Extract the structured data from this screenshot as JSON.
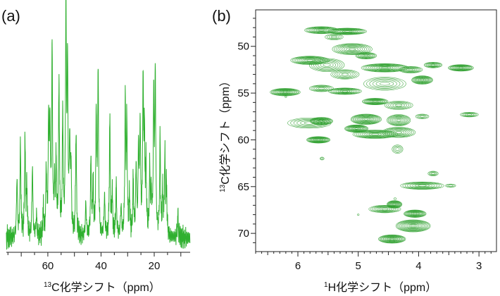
{
  "colors": {
    "spectrum": "#2fb02f",
    "contour": "#2a9e2a",
    "axis": "#222222"
  },
  "chart_data": [
    {
      "panel_label": "(a)",
      "type": "line",
      "xlabel_sup": "13",
      "xlabel": "C化学シフト（ppm）",
      "xlim": [
        75.6,
        6.5
      ],
      "x_reversed": true,
      "x_ticks": [
        60,
        40,
        20
      ],
      "x_minor_step": 5,
      "y_axis_shown": false,
      "grid": false,
      "peaks_ppm_intensity": [
        [
          71.6,
          0.27
        ],
        [
          70.3,
          0.42
        ],
        [
          68.6,
          0.43
        ],
        [
          67.9,
          0.23
        ],
        [
          65.8,
          0.32
        ],
        [
          64.3,
          0.1
        ],
        [
          61.7,
          0.12
        ],
        [
          60.6,
          0.29
        ],
        [
          59.7,
          0.5
        ],
        [
          59.2,
          0.46
        ],
        [
          58.4,
          0.82
        ],
        [
          57.5,
          0.2
        ],
        [
          56.9,
          0.32
        ],
        [
          55.8,
          0.69
        ],
        [
          54.4,
          0.53
        ],
        [
          53.2,
          1.0
        ],
        [
          52.6,
          0.72
        ],
        [
          51.8,
          0.4
        ],
        [
          51.3,
          0.3
        ],
        [
          49.4,
          0.47
        ],
        [
          45.7,
          0.15
        ],
        [
          43.8,
          0.34
        ],
        [
          43.0,
          0.24
        ],
        [
          41.8,
          0.55
        ],
        [
          41.1,
          0.73
        ],
        [
          38.7,
          0.18
        ],
        [
          36.7,
          0.52
        ],
        [
          35.8,
          0.19
        ],
        [
          34.3,
          0.23
        ],
        [
          32.5,
          0.14
        ],
        [
          30.9,
          0.58
        ],
        [
          30.3,
          0.5
        ],
        [
          29.3,
          0.17
        ],
        [
          27.9,
          0.25
        ],
        [
          26.8,
          0.31
        ],
        [
          25.9,
          0.38
        ],
        [
          25.3,
          0.49
        ],
        [
          24.2,
          0.67
        ],
        [
          23.7,
          0.42
        ],
        [
          23.1,
          0.3
        ],
        [
          21.7,
          0.28
        ],
        [
          21.1,
          0.17
        ],
        [
          20.2,
          0.6
        ],
        [
          19.6,
          0.72
        ],
        [
          17.8,
          0.43
        ],
        [
          16.8,
          0.19
        ],
        [
          16.0,
          0.35
        ],
        [
          15.4,
          0.22
        ],
        [
          11.1,
          0.1
        ]
      ]
    },
    {
      "panel_label": "(b)",
      "type": "contour",
      "xlabel_sup": "1",
      "xlabel": "H化学シフト（ppm）",
      "ylabel_sup": "13",
      "ylabel": "C化学シフト（ppm）",
      "xlim": [
        6.7,
        2.71
      ],
      "ylim": [
        46.1,
        71.95
      ],
      "x_reversed": true,
      "y_reversed": true,
      "x_ticks": [
        6,
        5,
        4,
        3
      ],
      "y_ticks": [
        50,
        55,
        60,
        65,
        70
      ],
      "x_minor_step": 0.1,
      "y_minor_step": 1,
      "cross_peaks": [
        {
          "h": 5.61,
          "c": 48.27,
          "wh": 0.56,
          "wc": 0.75,
          "levels": 9
        },
        {
          "h": 5.18,
          "c": 48.4,
          "wh": 0.64,
          "wc": 0.7,
          "levels": 11
        },
        {
          "h": 5.4,
          "c": 49.0,
          "wh": 0.3,
          "wc": 0.6,
          "levels": 4
        },
        {
          "h": 5.1,
          "c": 50.3,
          "wh": 0.66,
          "wc": 1.2,
          "levels": 9
        },
        {
          "h": 4.87,
          "c": 51.0,
          "wh": 0.35,
          "wc": 0.7,
          "levels": 8
        },
        {
          "h": 5.8,
          "c": 51.5,
          "wh": 0.64,
          "wc": 0.9,
          "levels": 10
        },
        {
          "h": 5.52,
          "c": 52.0,
          "wh": 0.58,
          "wc": 1.4,
          "levels": 7
        },
        {
          "h": 5.22,
          "c": 53.0,
          "wh": 0.47,
          "wc": 1.0,
          "levels": 6
        },
        {
          "h": 4.56,
          "c": 52.3,
          "wh": 0.78,
          "wc": 0.9,
          "levels": 11
        },
        {
          "h": 4.13,
          "c": 52.5,
          "wh": 0.39,
          "wc": 0.7,
          "levels": 7
        },
        {
          "h": 3.76,
          "c": 52.0,
          "wh": 0.3,
          "wc": 0.6,
          "levels": 7
        },
        {
          "h": 3.3,
          "c": 52.3,
          "wh": 0.42,
          "wc": 0.7,
          "levels": 11
        },
        {
          "h": 3.94,
          "c": 53.6,
          "wh": 0.35,
          "wc": 0.9,
          "levels": 11
        },
        {
          "h": 4.56,
          "c": 54.0,
          "wh": 0.7,
          "wc": 1.4,
          "levels": 6
        },
        {
          "h": 6.21,
          "c": 54.9,
          "wh": 0.5,
          "wc": 0.8,
          "levels": 12
        },
        {
          "h": 5.61,
          "c": 54.5,
          "wh": 0.4,
          "wc": 0.7,
          "levels": 6
        },
        {
          "h": 5.22,
          "c": 54.8,
          "wh": 0.55,
          "wc": 0.7,
          "levels": 9
        },
        {
          "h": 4.72,
          "c": 55.9,
          "wh": 0.43,
          "wc": 0.7,
          "levels": 11
        },
        {
          "h": 4.33,
          "c": 56.3,
          "wh": 0.47,
          "wc": 0.9,
          "levels": 6
        },
        {
          "h": 5.81,
          "c": 58.2,
          "wh": 0.72,
          "wc": 1.1,
          "levels": 6
        },
        {
          "h": 5.61,
          "c": 58.0,
          "wh": 0.38,
          "wc": 0.8,
          "levels": 11
        },
        {
          "h": 4.87,
          "c": 57.8,
          "wh": 0.51,
          "wc": 1.1,
          "levels": 12
        },
        {
          "h": 4.33,
          "c": 57.9,
          "wh": 0.39,
          "wc": 1.2,
          "levels": 9
        },
        {
          "h": 3.94,
          "c": 57.5,
          "wh": 0.22,
          "wc": 0.5,
          "levels": 4
        },
        {
          "h": 3.16,
          "c": 57.3,
          "wh": 0.3,
          "wc": 0.5,
          "levels": 5
        },
        {
          "h": 5.03,
          "c": 58.8,
          "wh": 0.39,
          "wc": 0.8,
          "levels": 12
        },
        {
          "h": 4.72,
          "c": 59.4,
          "wh": 0.74,
          "wc": 0.9,
          "levels": 10
        },
        {
          "h": 4.33,
          "c": 59.2,
          "wh": 0.55,
          "wc": 1.1,
          "levels": 8
        },
        {
          "h": 5.66,
          "c": 60.0,
          "wh": 0.39,
          "wc": 0.7,
          "levels": 12
        },
        {
          "h": 4.35,
          "c": 61.0,
          "wh": 0.18,
          "wc": 0.9,
          "levels": 4
        },
        {
          "h": 5.6,
          "c": 62.0,
          "wh": 0.07,
          "wc": 0.3,
          "levels": 2
        },
        {
          "h": 3.76,
          "c": 63.6,
          "wh": 0.17,
          "wc": 0.5,
          "levels": 4
        },
        {
          "h": 3.94,
          "c": 64.9,
          "wh": 0.72,
          "wc": 0.8,
          "levels": 8
        },
        {
          "h": 3.47,
          "c": 64.9,
          "wh": 0.17,
          "wc": 0.35,
          "levels": 3
        },
        {
          "h": 4.56,
          "c": 67.4,
          "wh": 0.53,
          "wc": 0.8,
          "levels": 8
        },
        {
          "h": 4.4,
          "c": 66.9,
          "wh": 0.25,
          "wc": 0.8,
          "levels": 11
        },
        {
          "h": 4.06,
          "c": 67.9,
          "wh": 0.37,
          "wc": 0.8,
          "levels": 12
        },
        {
          "h": 4.09,
          "c": 69.2,
          "wh": 0.57,
          "wc": 1.3,
          "levels": 12
        },
        {
          "h": 4.44,
          "c": 70.6,
          "wh": 0.45,
          "wc": 0.9,
          "levels": 12
        },
        {
          "h": 5.0,
          "c": 68.0,
          "wh": 0.03,
          "wc": 0.15,
          "levels": 1
        },
        {
          "h": 4.39,
          "c": 66.3,
          "wh": 0.04,
          "wc": 0.2,
          "levels": 1
        },
        {
          "h": 6.2,
          "c": 55.4,
          "wh": 0.03,
          "wc": 0.15,
          "levels": 1
        }
      ]
    }
  ]
}
